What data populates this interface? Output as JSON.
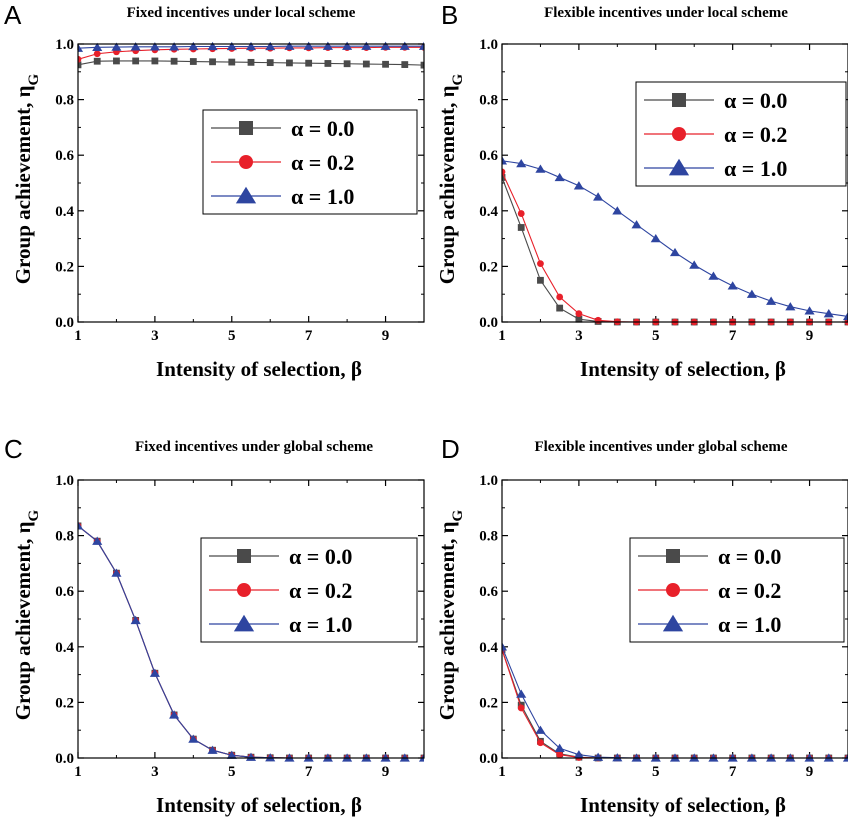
{
  "chart_data": [
    {
      "panel": "A",
      "type": "line",
      "title": "Fixed incentives under local scheme",
      "xlabel": "Intensity of selection, β",
      "ylabel": "Group achievement, η_G",
      "xlim": [
        1,
        10
      ],
      "ylim": [
        0,
        1
      ],
      "xticks": [
        1,
        3,
        5,
        7,
        9
      ],
      "yticks": [
        0.0,
        0.2,
        0.4,
        0.6,
        0.8,
        1.0
      ],
      "x": [
        1,
        1.5,
        2,
        2.5,
        3,
        3.5,
        4,
        4.5,
        5,
        5.5,
        6,
        6.5,
        7,
        7.5,
        8,
        8.5,
        9,
        9.5,
        10
      ],
      "legend_position": "right",
      "series": [
        {
          "name": "α = 0.0",
          "color": "#4a4a4a",
          "marker": "square",
          "values": [
            0.925,
            0.938,
            0.939,
            0.939,
            0.939,
            0.938,
            0.937,
            0.936,
            0.935,
            0.934,
            0.933,
            0.932,
            0.931,
            0.93,
            0.929,
            0.928,
            0.927,
            0.926,
            0.924
          ]
        },
        {
          "name": "α = 0.2",
          "color": "#e8202a",
          "marker": "circle",
          "values": [
            0.945,
            0.965,
            0.972,
            0.976,
            0.979,
            0.981,
            0.982,
            0.983,
            0.984,
            0.985,
            0.985,
            0.986,
            0.986,
            0.987,
            0.987,
            0.987,
            0.988,
            0.988,
            0.988
          ]
        },
        {
          "name": "α = 1.0",
          "color": "#2e45a0",
          "marker": "triangle",
          "values": [
            0.985,
            0.988,
            0.989,
            0.99,
            0.99,
            0.99,
            0.991,
            0.991,
            0.991,
            0.991,
            0.991,
            0.992,
            0.992,
            0.992,
            0.992,
            0.992,
            0.992,
            0.992,
            0.992
          ]
        }
      ]
    },
    {
      "panel": "B",
      "type": "line",
      "title": "Flexible incentives under local scheme",
      "xlabel": "Intensity of selection, β",
      "ylabel": "Group achievement, η_G",
      "xlim": [
        1,
        10
      ],
      "ylim": [
        0,
        1
      ],
      "xticks": [
        1,
        3,
        5,
        7,
        9
      ],
      "yticks": [
        0.0,
        0.2,
        0.4,
        0.6,
        0.8,
        1.0
      ],
      "x": [
        1,
        1.5,
        2,
        2.5,
        3,
        3.5,
        4,
        4.5,
        5,
        5.5,
        6,
        6.5,
        7,
        7.5,
        8,
        8.5,
        9,
        9.5,
        10
      ],
      "legend_position": "top-right",
      "series": [
        {
          "name": "α = 0.0",
          "color": "#4a4a4a",
          "marker": "square",
          "values": [
            0.52,
            0.34,
            0.15,
            0.05,
            0.01,
            0.002,
            0.0,
            0.0,
            0.0,
            0.0,
            0.0,
            0.0,
            0.0,
            0.0,
            0.0,
            0.0,
            0.0,
            0.0,
            0.0
          ]
        },
        {
          "name": "α = 0.2",
          "color": "#e8202a",
          "marker": "circle",
          "values": [
            0.54,
            0.39,
            0.21,
            0.09,
            0.03,
            0.006,
            0.001,
            0.0,
            0.0,
            0.0,
            0.0,
            0.0,
            0.0,
            0.0,
            0.0,
            0.0,
            0.0,
            0.0,
            0.0
          ]
        },
        {
          "name": "α = 1.0",
          "color": "#2e45a0",
          "marker": "triangle",
          "values": [
            0.58,
            0.57,
            0.55,
            0.52,
            0.49,
            0.45,
            0.4,
            0.35,
            0.3,
            0.25,
            0.205,
            0.165,
            0.13,
            0.1,
            0.075,
            0.055,
            0.04,
            0.03,
            0.02
          ]
        }
      ]
    },
    {
      "panel": "C",
      "type": "line",
      "title": "Fixed incentives under global scheme",
      "xlabel": "Intensity of selection, β",
      "ylabel": "Group achievement, η_G",
      "xlim": [
        1,
        10
      ],
      "ylim": [
        0,
        1
      ],
      "xticks": [
        1,
        3,
        5,
        7,
        9
      ],
      "yticks": [
        0.0,
        0.2,
        0.4,
        0.6,
        0.8,
        1.0
      ],
      "x": [
        1,
        1.5,
        2,
        2.5,
        3,
        3.5,
        4,
        4.5,
        5,
        5.5,
        6,
        6.5,
        7,
        7.5,
        8,
        8.5,
        9,
        9.5,
        10
      ],
      "legend_position": "right",
      "series": [
        {
          "name": "α = 0.0",
          "color": "#4a4a4a",
          "marker": "square",
          "values": [
            0.835,
            0.78,
            0.665,
            0.495,
            0.305,
            0.155,
            0.068,
            0.028,
            0.01,
            0.003,
            0.001,
            0.0,
            0.0,
            0.0,
            0.0,
            0.0,
            0.0,
            0.0,
            0.0
          ]
        },
        {
          "name": "α = 0.2",
          "color": "#e8202a",
          "marker": "circle",
          "values": [
            0.835,
            0.78,
            0.665,
            0.495,
            0.305,
            0.155,
            0.068,
            0.028,
            0.01,
            0.003,
            0.001,
            0.0,
            0.0,
            0.0,
            0.0,
            0.0,
            0.0,
            0.0,
            0.0
          ]
        },
        {
          "name": "α = 1.0",
          "color": "#2e45a0",
          "marker": "triangle",
          "values": [
            0.835,
            0.78,
            0.665,
            0.495,
            0.305,
            0.155,
            0.068,
            0.028,
            0.01,
            0.003,
            0.001,
            0.0,
            0.0,
            0.0,
            0.0,
            0.0,
            0.0,
            0.0,
            0.0
          ]
        }
      ]
    },
    {
      "panel": "D",
      "type": "line",
      "title": "Flexible incentives under global scheme",
      "xlabel": "Intensity of selection, β",
      "ylabel": "Group achievement, η_G",
      "xlim": [
        1,
        10
      ],
      "ylim": [
        0,
        1
      ],
      "xticks": [
        1,
        3,
        5,
        7,
        9
      ],
      "yticks": [
        0.0,
        0.2,
        0.4,
        0.6,
        0.8,
        1.0
      ],
      "x": [
        1,
        1.5,
        2,
        2.5,
        3,
        3.5,
        4,
        4.5,
        5,
        5.5,
        6,
        6.5,
        7,
        7.5,
        8,
        8.5,
        9,
        9.5,
        10
      ],
      "legend_position": "right",
      "series": [
        {
          "name": "α = 0.0",
          "color": "#4a4a4a",
          "marker": "square",
          "values": [
            0.39,
            0.19,
            0.06,
            0.015,
            0.003,
            0.0,
            0.0,
            0.0,
            0.0,
            0.0,
            0.0,
            0.0,
            0.0,
            0.0,
            0.0,
            0.0,
            0.0,
            0.0,
            0.0
          ]
        },
        {
          "name": "α = 0.2",
          "color": "#e8202a",
          "marker": "circle",
          "values": [
            0.39,
            0.18,
            0.055,
            0.012,
            0.002,
            0.0,
            0.0,
            0.0,
            0.0,
            0.0,
            0.0,
            0.0,
            0.0,
            0.0,
            0.0,
            0.0,
            0.0,
            0.0,
            0.0
          ]
        },
        {
          "name": "α = 1.0",
          "color": "#2e45a0",
          "marker": "triangle",
          "values": [
            0.4,
            0.23,
            0.1,
            0.035,
            0.012,
            0.003,
            0.001,
            0.0,
            0.0,
            0.0,
            0.0,
            0.0,
            0.0,
            0.0,
            0.0,
            0.0,
            0.0,
            0.0,
            0.0
          ]
        }
      ]
    }
  ]
}
